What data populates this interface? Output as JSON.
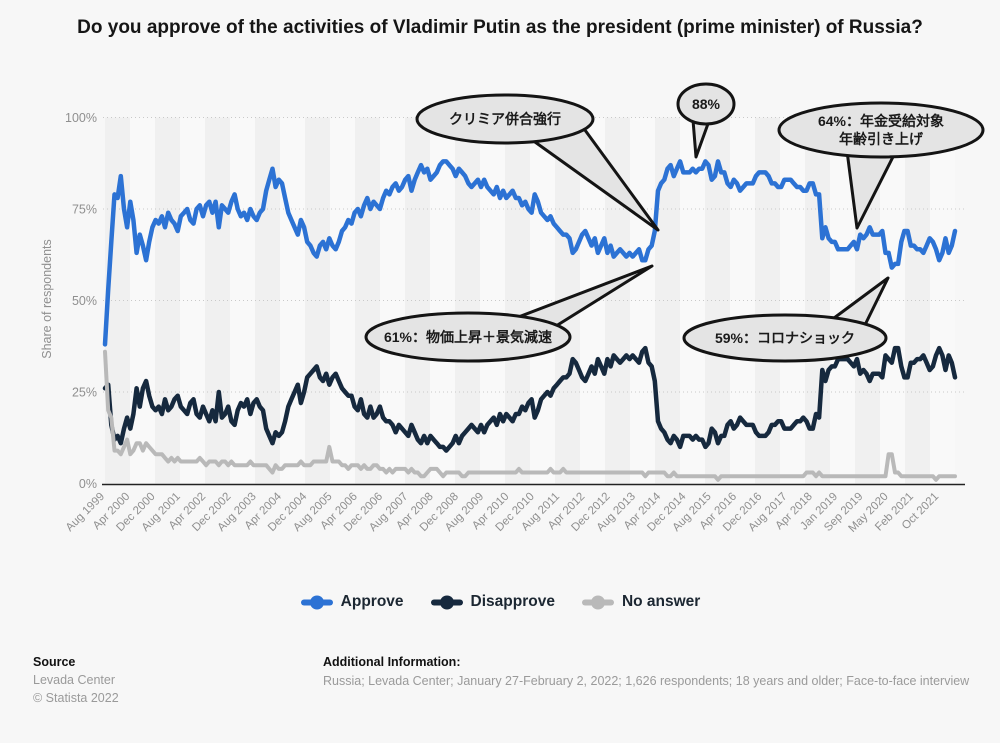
{
  "title": "Do you approve of the activities of Vladimir Putin as the president (prime minister) of Russia?",
  "y_axis": {
    "label": "Share of respondents",
    "ticks": [
      "100%",
      "75%",
      "50%",
      "25%",
      "0%"
    ],
    "tick_values": [
      100,
      75,
      50,
      25,
      0
    ]
  },
  "legend": [
    {
      "label": "Approve",
      "color": "#2c72d4"
    },
    {
      "label": "Disapprove",
      "color": "#16293e"
    },
    {
      "label": "No answer",
      "color": "#b9b9b9"
    }
  ],
  "footer": {
    "source_heading": "Source",
    "source_name": "Levada Center",
    "copyright": "© Statista 2022",
    "additional_heading": "Additional Information:",
    "additional_text": "Russia; Levada Center; January 27-February 2, 2022; 1,626 respondents; 18 years and older; Face-to-face interview"
  },
  "chart_data": {
    "type": "line",
    "title": "Do you approve of the activities of Vladimir Putin as the president (prime minister) of Russia?",
    "ylabel": "Share of respondents",
    "ylim": [
      0,
      100
    ],
    "grid": "dotted horizontal at 25/50/75/100",
    "legend_position": "bottom-center",
    "x_tick_labels": [
      "Aug 1999",
      "Apr 2000",
      "Dec 2000",
      "Aug 2001",
      "Apr 2002",
      "Dec 2002",
      "Aug 2003",
      "Apr 2004",
      "Dec 2004",
      "Aug 2005",
      "Apr 2006",
      "Dec 2006",
      "Aug 2007",
      "Apr 2008",
      "Dec 2008",
      "Aug 2009",
      "Apr 2010",
      "Dec 2010",
      "Aug 2011",
      "Apr 2012",
      "Dec 2012",
      "Aug 2013",
      "Apr 2014",
      "Dec 2014",
      "Aug 2015",
      "Apr 2016",
      "Dec 2016",
      "Aug 2017",
      "Apr 2018",
      "Jan 2019",
      "Sep 2019",
      "May 2020",
      "Feb 2021",
      "Oct 2021"
    ],
    "points_per_tick": 8,
    "series": [
      {
        "name": "Approve",
        "color": "#2c72d4",
        "values": [
          38,
          53,
          66,
          79,
          78,
          84,
          75,
          70,
          77,
          72,
          63,
          68,
          65,
          61,
          66,
          70,
          72,
          71,
          73,
          70,
          74,
          72,
          71,
          69,
          73,
          74,
          75,
          72,
          71,
          75,
          76,
          73,
          76,
          77,
          74,
          77,
          70,
          76,
          75,
          74,
          77,
          79,
          75,
          73,
          74,
          72,
          75,
          73,
          72,
          74,
          75,
          80,
          83,
          86,
          81,
          83,
          82,
          78,
          74,
          72,
          70,
          68,
          72,
          70,
          66,
          65,
          63,
          62,
          65,
          66,
          64,
          67,
          65,
          64,
          66,
          69,
          70,
          72,
          71,
          74,
          75,
          73,
          76,
          78,
          75,
          77,
          76,
          75,
          78,
          80,
          79,
          81,
          82,
          80,
          81,
          83,
          84,
          80,
          83,
          85,
          87,
          85,
          86,
          83,
          84,
          85,
          87,
          88,
          88,
          87,
          86,
          84,
          86,
          85,
          84,
          82,
          81,
          82,
          83,
          81,
          83,
          81,
          80,
          79,
          81,
          78,
          80,
          78,
          79,
          80,
          78,
          78,
          76,
          77,
          75,
          74,
          79,
          77,
          74,
          73,
          72,
          73,
          71,
          70,
          69,
          68,
          68,
          67,
          63,
          64,
          66,
          68,
          69,
          67,
          65,
          67,
          63,
          65,
          67,
          63,
          65,
          62,
          63,
          64,
          63,
          62,
          63,
          62,
          63,
          64,
          61,
          61,
          64,
          65,
          69,
          80,
          82,
          83,
          86,
          87,
          84,
          86,
          88,
          85,
          85,
          85,
          86,
          85,
          86,
          86,
          88,
          87,
          83,
          84,
          88,
          85,
          85,
          82,
          81,
          83,
          82,
          80,
          81,
          82,
          82,
          82,
          84,
          85,
          85,
          85,
          84,
          82,
          82,
          81,
          81,
          83,
          83,
          83,
          82,
          81,
          81,
          80,
          80,
          82,
          82,
          79,
          79,
          67,
          70,
          67,
          66,
          66,
          64,
          64,
          64,
          64,
          65,
          66,
          64,
          68,
          67,
          68,
          70,
          68,
          68,
          68,
          69,
          63,
          63,
          59,
          60,
          60,
          66,
          69,
          69,
          65,
          65,
          64,
          64,
          63,
          65,
          67,
          66,
          64,
          61,
          63,
          67,
          63,
          65,
          69
        ]
      },
      {
        "name": "Disapprove",
        "color": "#16293e",
        "values": [
          26,
          27,
          16,
          12,
          13,
          11,
          15,
          18,
          15,
          19,
          26,
          21,
          26,
          28,
          24,
          21,
          20,
          21,
          19,
          23,
          20,
          21,
          23,
          24,
          21,
          20,
          19,
          22,
          23,
          19,
          18,
          21,
          19,
          17,
          20,
          17,
          25,
          18,
          19,
          21,
          17,
          16,
          20,
          22,
          21,
          23,
          19,
          22,
          23,
          21,
          20,
          15,
          13,
          11,
          14,
          13,
          14,
          17,
          21,
          23,
          25,
          27,
          22,
          25,
          29,
          30,
          31,
          32,
          29,
          28,
          30,
          27,
          29,
          30,
          28,
          26,
          25,
          24,
          24,
          21,
          20,
          23,
          19,
          18,
          21,
          18,
          19,
          21,
          18,
          17,
          17,
          16,
          14,
          16,
          15,
          14,
          13,
          16,
          14,
          12,
          11,
          13,
          11,
          13,
          12,
          11,
          10,
          10,
          9,
          10,
          11,
          13,
          11,
          13,
          14,
          15,
          16,
          15,
          14,
          16,
          14,
          16,
          17,
          18,
          16,
          19,
          17,
          19,
          18,
          17,
          19,
          19,
          21,
          20,
          22,
          23,
          18,
          20,
          23,
          24,
          25,
          24,
          26,
          27,
          28,
          29,
          29,
          30,
          34,
          33,
          31,
          29,
          28,
          30,
          32,
          30,
          34,
          32,
          30,
          34,
          32,
          35,
          34,
          33,
          34,
          35,
          34,
          35,
          34,
          33,
          36,
          37,
          33,
          32,
          28,
          17,
          15,
          14,
          12,
          11,
          13,
          12,
          10,
          13,
          13,
          13,
          12,
          13,
          12,
          12,
          10,
          11,
          15,
          14,
          11,
          13,
          13,
          16,
          17,
          15,
          16,
          18,
          17,
          16,
          16,
          16,
          14,
          13,
          13,
          13,
          14,
          16,
          16,
          17,
          17,
          15,
          15,
          15,
          16,
          17,
          17,
          18,
          17,
          15,
          15,
          19,
          18,
          31,
          28,
          31,
          32,
          32,
          34,
          34,
          34,
          34,
          33,
          32,
          34,
          30,
          31,
          30,
          28,
          30,
          30,
          30,
          29,
          35,
          34,
          33,
          37,
          37,
          32,
          29,
          29,
          33,
          33,
          34,
          34,
          35,
          33,
          31,
          32,
          35,
          37,
          35,
          31,
          35,
          33,
          29
        ]
      },
      {
        "name": "No answer",
        "color": "#b9b9b9",
        "values": [
          36,
          20,
          18,
          9,
          9,
          8,
          10,
          12,
          8,
          9,
          11,
          11,
          9,
          11,
          10,
          9,
          8,
          8,
          8,
          7,
          6,
          7,
          6,
          7,
          6,
          6,
          6,
          6,
          6,
          6,
          7,
          6,
          5,
          6,
          6,
          6,
          5,
          6,
          6,
          5,
          6,
          5,
          5,
          5,
          5,
          5,
          6,
          5,
          5,
          5,
          5,
          5,
          4,
          3,
          5,
          4,
          4,
          5,
          5,
          5,
          5,
          5,
          6,
          5,
          5,
          5,
          6,
          6,
          6,
          6,
          6,
          10,
          6,
          6,
          6,
          5,
          5,
          4,
          5,
          5,
          5,
          4,
          5,
          4,
          4,
          5,
          5,
          4,
          4,
          3,
          4,
          3,
          4,
          4,
          4,
          4,
          3,
          4,
          3,
          3,
          2,
          2,
          3,
          4,
          4,
          4,
          3,
          2,
          3,
          3,
          3,
          3,
          3,
          2,
          2,
          3,
          3,
          3,
          3,
          3,
          3,
          3,
          3,
          3,
          3,
          3,
          3,
          3,
          3,
          3,
          3,
          4,
          3,
          3,
          3,
          3,
          3,
          3,
          3,
          3,
          3,
          4,
          3,
          3,
          3,
          4,
          3,
          3,
          3,
          3,
          3,
          3,
          3,
          3,
          3,
          3,
          3,
          3,
          3,
          3,
          3,
          3,
          3,
          3,
          3,
          3,
          3,
          3,
          3,
          3,
          3,
          2,
          3,
          3,
          3,
          3,
          3,
          3,
          2,
          2,
          3,
          2,
          2,
          2,
          2,
          2,
          2,
          2,
          2,
          2,
          2,
          2,
          2,
          2,
          1,
          2,
          2,
          2,
          2,
          2,
          2,
          2,
          2,
          2,
          2,
          2,
          2,
          2,
          2,
          2,
          2,
          2,
          2,
          2,
          2,
          2,
          2,
          2,
          2,
          2,
          2,
          2,
          3,
          3,
          3,
          2,
          3,
          2,
          2,
          2,
          2,
          2,
          2,
          2,
          2,
          2,
          2,
          2,
          2,
          2,
          2,
          2,
          2,
          2,
          2,
          2,
          2,
          2,
          8,
          8,
          3,
          3,
          2,
          2,
          2,
          2,
          2,
          2,
          2,
          2,
          2,
          2,
          2,
          1,
          2,
          2,
          2,
          2,
          2,
          2
        ]
      }
    ],
    "annotations": [
      {
        "id": "crimea",
        "lines": [
          "クリミア併合強行"
        ]
      },
      {
        "id": "peak-88",
        "lines": [
          "88%"
        ]
      },
      {
        "id": "pension",
        "lines": [
          "64%：年金受給対象",
          "年齢引き上げ"
        ]
      },
      {
        "id": "inflation",
        "lines": [
          "61%：物価上昇＋景気減速"
        ]
      },
      {
        "id": "corona",
        "lines": [
          "59%：コロナショック"
        ]
      }
    ]
  }
}
